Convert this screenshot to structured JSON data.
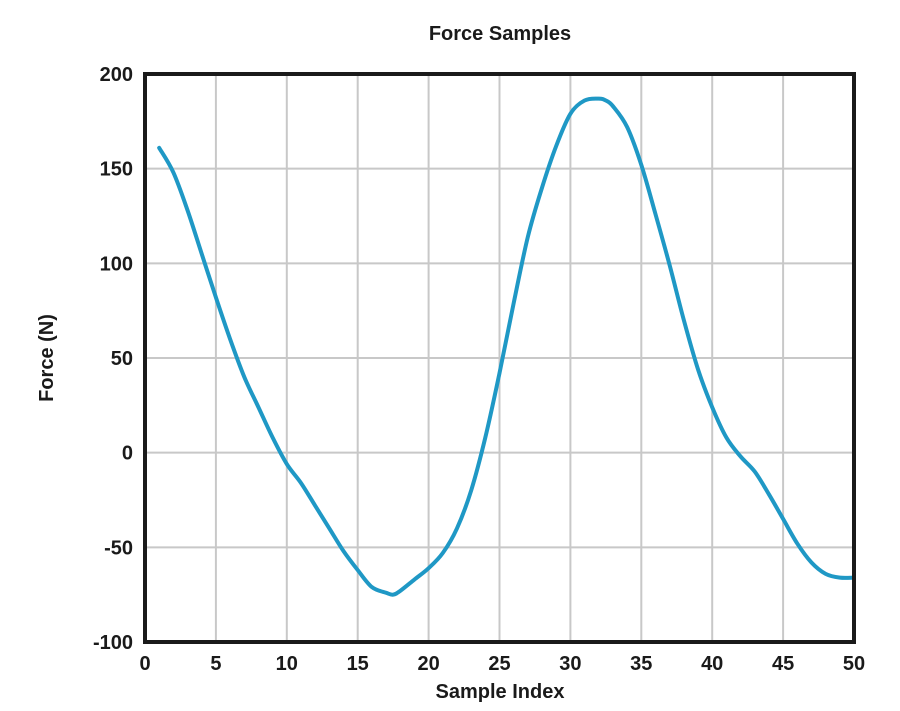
{
  "chart_data": {
    "type": "line",
    "title": "Force Samples",
    "xlabel": "Sample Index",
    "ylabel": "Force (N)",
    "xlim": [
      0,
      50
    ],
    "ylim": [
      -100,
      200
    ],
    "xticks": [
      0,
      5,
      10,
      15,
      20,
      25,
      30,
      35,
      40,
      45,
      50
    ],
    "yticks": [
      -100,
      -50,
      0,
      50,
      100,
      150,
      200
    ],
    "grid": true,
    "line_color": "#1f98c5",
    "series": [
      {
        "x": [
          1,
          2,
          3,
          4,
          5,
          6,
          7,
          8,
          9,
          10,
          11,
          12,
          13,
          14,
          15,
          16,
          17,
          17.5,
          18,
          19,
          20,
          21,
          22,
          23,
          24,
          25,
          26,
          27,
          28,
          29,
          30,
          31,
          32,
          32.5,
          33,
          34,
          35,
          36,
          37,
          38,
          39,
          40,
          41,
          42,
          43,
          44,
          45,
          46,
          47,
          48,
          49,
          50
        ],
        "y": [
          161,
          148,
          128,
          105,
          82,
          60,
          40,
          24,
          8,
          -6,
          -16,
          -28,
          -40,
          -52,
          -62,
          -71,
          -74,
          -75,
          -73,
          -67,
          -61,
          -53,
          -40,
          -20,
          8,
          42,
          79,
          114,
          140,
          162,
          179,
          186,
          187,
          186,
          183,
          172,
          152,
          126,
          99,
          70,
          44,
          24,
          8,
          -2,
          -10,
          -22,
          -35,
          -48,
          -58,
          -64,
          -66,
          -66
        ]
      }
    ]
  }
}
